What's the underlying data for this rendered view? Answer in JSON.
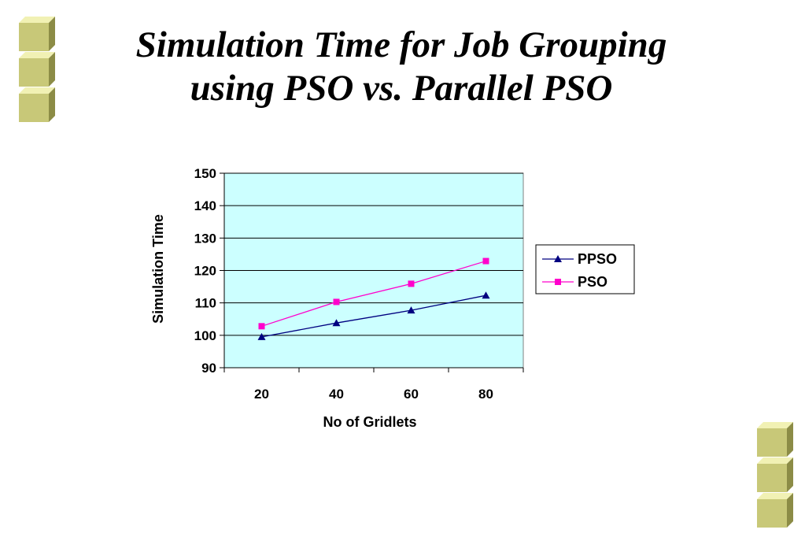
{
  "slide": {
    "title_line1": "Simulation Time for Job Grouping",
    "title_line2": "using PSO vs. Parallel PSO"
  },
  "decor": {
    "cube_icon": "cube-bullet-icon",
    "cube_colors": {
      "top": "#f1f1b4",
      "front": "#c8c878",
      "side": "#8c8c46"
    }
  },
  "chart_data": {
    "type": "line",
    "title": "",
    "xlabel": "No of Gridlets",
    "ylabel": "Simulation Time",
    "categories": [
      "20",
      "40",
      "60",
      "80"
    ],
    "ylim": [
      90,
      150
    ],
    "yticks": [
      "90",
      "100",
      "110",
      "120",
      "130",
      "140",
      "150"
    ],
    "grid": true,
    "plot_background": "#ccffff",
    "legend_position": "right",
    "series": [
      {
        "name": "PPSO",
        "values": [
          99.5,
          103.8,
          107.7,
          112.3
        ],
        "color": "#000080",
        "marker": "triangle"
      },
      {
        "name": "PSO",
        "values": [
          102.8,
          110.3,
          115.9,
          122.9
        ],
        "color": "#ff00cc",
        "marker": "square"
      }
    ]
  }
}
